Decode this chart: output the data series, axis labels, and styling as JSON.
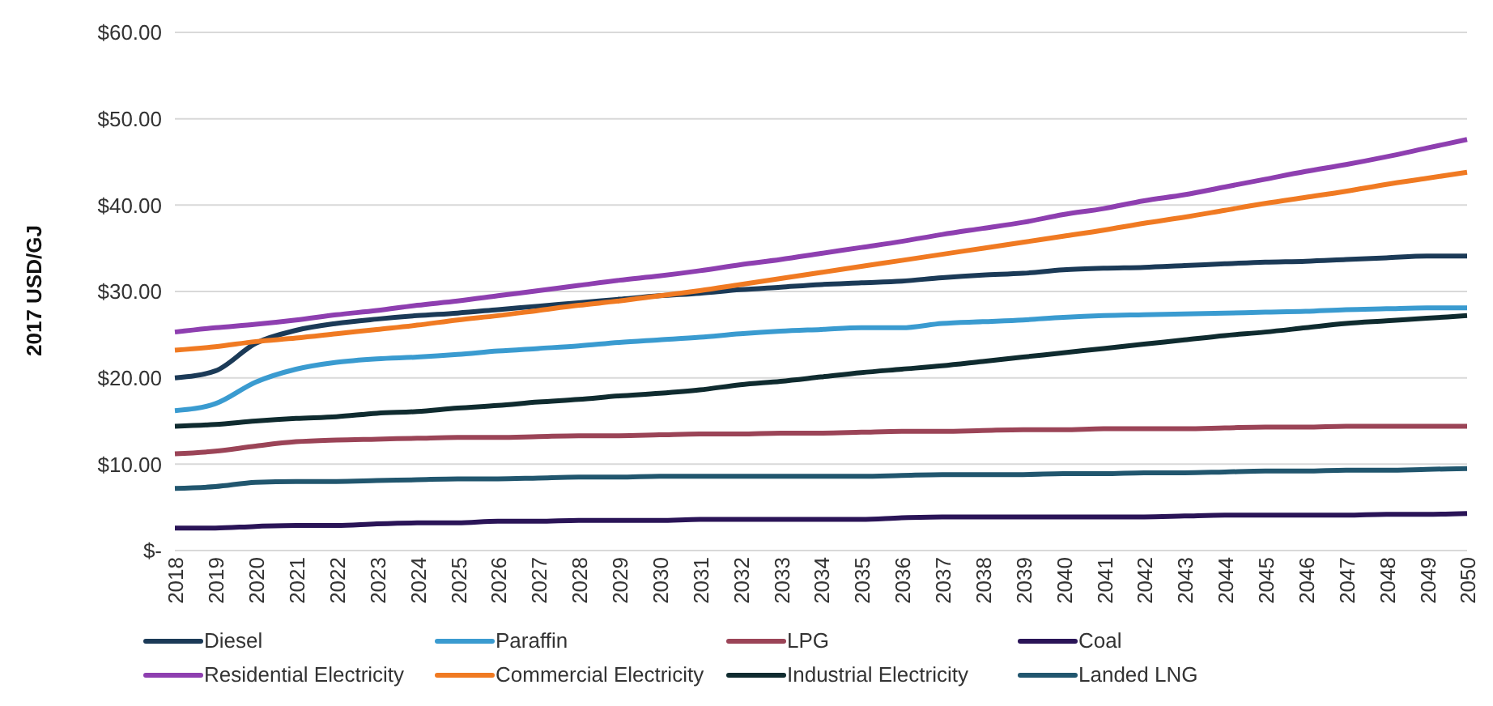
{
  "chart_data": {
    "type": "line",
    "ylabel": "2017 USD/GJ",
    "categories": [
      "2018",
      "2019",
      "2020",
      "2021",
      "2022",
      "2023",
      "2024",
      "2025",
      "2026",
      "2027",
      "2028",
      "2029",
      "2030",
      "2031",
      "2032",
      "2033",
      "2034",
      "2035",
      "2036",
      "2037",
      "2038",
      "2039",
      "2040",
      "2041",
      "2042",
      "2043",
      "2044",
      "2045",
      "2046",
      "2047",
      "2048",
      "2049",
      "2050"
    ],
    "ylim": [
      0,
      60
    ],
    "yticks": [
      {
        "value": 0,
        "label": "$-"
      },
      {
        "value": 10,
        "label": "$10.00"
      },
      {
        "value": 20,
        "label": "$20.00"
      },
      {
        "value": 30,
        "label": "$30.00"
      },
      {
        "value": 40,
        "label": "$40.00"
      },
      {
        "value": 50,
        "label": "$50.00"
      },
      {
        "value": 60,
        "label": "$60.00"
      }
    ],
    "grid": "y",
    "legend": "bottom",
    "marker": "none",
    "line_style": "solid",
    "series": [
      {
        "name": "Diesel",
        "color": "#1b3a57",
        "values": [
          20,
          20.8,
          24,
          25.5,
          26.3,
          26.8,
          27.2,
          27.5,
          27.9,
          28.3,
          28.7,
          29.1,
          29.5,
          29.8,
          30.2,
          30.5,
          30.8,
          31,
          31.2,
          31.6,
          31.9,
          32.1,
          32.5,
          32.7,
          32.8,
          33,
          33.2,
          33.4,
          33.5,
          33.7,
          33.9,
          34.1,
          34.1
        ]
      },
      {
        "name": "Paraffin",
        "color": "#3a9bd0",
        "values": [
          16.2,
          17,
          19.5,
          21,
          21.8,
          22.2,
          22.4,
          22.7,
          23.1,
          23.4,
          23.7,
          24.1,
          24.4,
          24.7,
          25.1,
          25.4,
          25.6,
          25.8,
          25.8,
          26.3,
          26.5,
          26.7,
          27,
          27.2,
          27.3,
          27.4,
          27.5,
          27.6,
          27.7,
          27.9,
          28,
          28.1,
          28.1
        ]
      },
      {
        "name": "LPG",
        "color": "#9b4457",
        "values": [
          11.2,
          11.5,
          12.1,
          12.6,
          12.8,
          12.9,
          13,
          13.1,
          13.1,
          13.2,
          13.3,
          13.3,
          13.4,
          13.5,
          13.5,
          13.6,
          13.6,
          13.7,
          13.8,
          13.8,
          13.9,
          14,
          14,
          14.1,
          14.1,
          14.1,
          14.2,
          14.3,
          14.3,
          14.4,
          14.4,
          14.4,
          14.4
        ]
      },
      {
        "name": "Coal",
        "color": "#2a1457",
        "values": [
          2.6,
          2.6,
          2.8,
          2.9,
          2.9,
          3.1,
          3.2,
          3.2,
          3.4,
          3.4,
          3.5,
          3.5,
          3.5,
          3.6,
          3.6,
          3.6,
          3.6,
          3.6,
          3.8,
          3.9,
          3.9,
          3.9,
          3.9,
          3.9,
          3.9,
          4,
          4.1,
          4.1,
          4.1,
          4.1,
          4.2,
          4.2,
          4.3
        ]
      },
      {
        "name": "Residential Electricity",
        "color": "#8e3fb0",
        "values": [
          25.3,
          25.8,
          26.2,
          26.7,
          27.3,
          27.8,
          28.4,
          28.9,
          29.5,
          30.1,
          30.7,
          31.3,
          31.8,
          32.4,
          33.1,
          33.7,
          34.4,
          35.1,
          35.8,
          36.6,
          37.3,
          38,
          38.9,
          39.6,
          40.5,
          41.2,
          42.1,
          43,
          43.9,
          44.7,
          45.6,
          46.6,
          47.6
        ]
      },
      {
        "name": "Commercial Electricity",
        "color": "#f07a22",
        "values": [
          23.2,
          23.6,
          24.2,
          24.6,
          25.1,
          25.6,
          26.1,
          26.7,
          27.2,
          27.8,
          28.4,
          28.9,
          29.5,
          30.1,
          30.8,
          31.5,
          32.2,
          32.9,
          33.6,
          34.3,
          35,
          35.7,
          36.4,
          37.1,
          37.9,
          38.6,
          39.4,
          40.2,
          40.9,
          41.6,
          42.4,
          43.1,
          43.8
        ]
      },
      {
        "name": "Industrial Electricity",
        "color": "#0f2b2f",
        "values": [
          14.4,
          14.6,
          15,
          15.3,
          15.5,
          15.9,
          16.1,
          16.5,
          16.8,
          17.2,
          17.5,
          17.9,
          18.2,
          18.6,
          19.2,
          19.6,
          20.1,
          20.6,
          21,
          21.4,
          21.9,
          22.4,
          22.9,
          23.4,
          23.9,
          24.4,
          24.9,
          25.3,
          25.8,
          26.3,
          26.6,
          26.9,
          27.2
        ]
      },
      {
        "name": "Landed LNG",
        "color": "#21566e",
        "values": [
          7.2,
          7.4,
          7.9,
          8,
          8,
          8.1,
          8.2,
          8.3,
          8.3,
          8.4,
          8.5,
          8.5,
          8.6,
          8.6,
          8.6,
          8.6,
          8.6,
          8.6,
          8.7,
          8.8,
          8.8,
          8.8,
          8.9,
          8.9,
          9,
          9,
          9.1,
          9.2,
          9.2,
          9.3,
          9.3,
          9.4,
          9.5
        ]
      }
    ]
  }
}
